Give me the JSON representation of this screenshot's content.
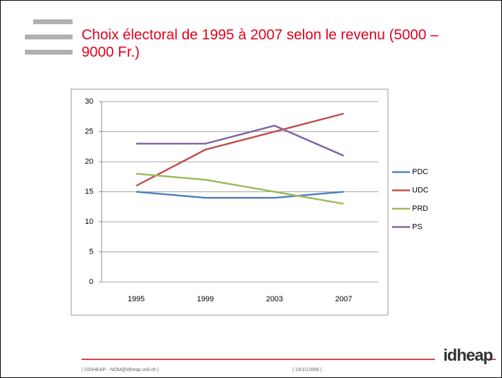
{
  "chart_data": {
    "type": "line",
    "title": "Choix électoral de 1995 à 2007 selon le revenu (5000 – 9000 Fr.)",
    "categories": [
      "1995",
      "1999",
      "2003",
      "2007"
    ],
    "series": [
      {
        "name": "PDC",
        "color": "#4f81bd",
        "values": [
          15,
          14,
          14,
          15
        ]
      },
      {
        "name": "UDC",
        "color": "#c0504d",
        "values": [
          16,
          22,
          25,
          28
        ]
      },
      {
        "name": "PRD",
        "color": "#9bbb59",
        "values": [
          18,
          17,
          15,
          13
        ]
      },
      {
        "name": "PS",
        "color": "#8064a2",
        "values": [
          23,
          23,
          26,
          21
        ]
      }
    ],
    "ylim": [
      0,
      30
    ],
    "yticks": [
      0,
      5,
      10,
      15,
      20,
      25,
      30
    ],
    "grid": true,
    "legend": "right"
  },
  "footer": {
    "left": "| ©IDHEAP - NOM@idheap.unil.ch |",
    "date": "| 14/11/2008 |",
    "logo": "idheap"
  }
}
